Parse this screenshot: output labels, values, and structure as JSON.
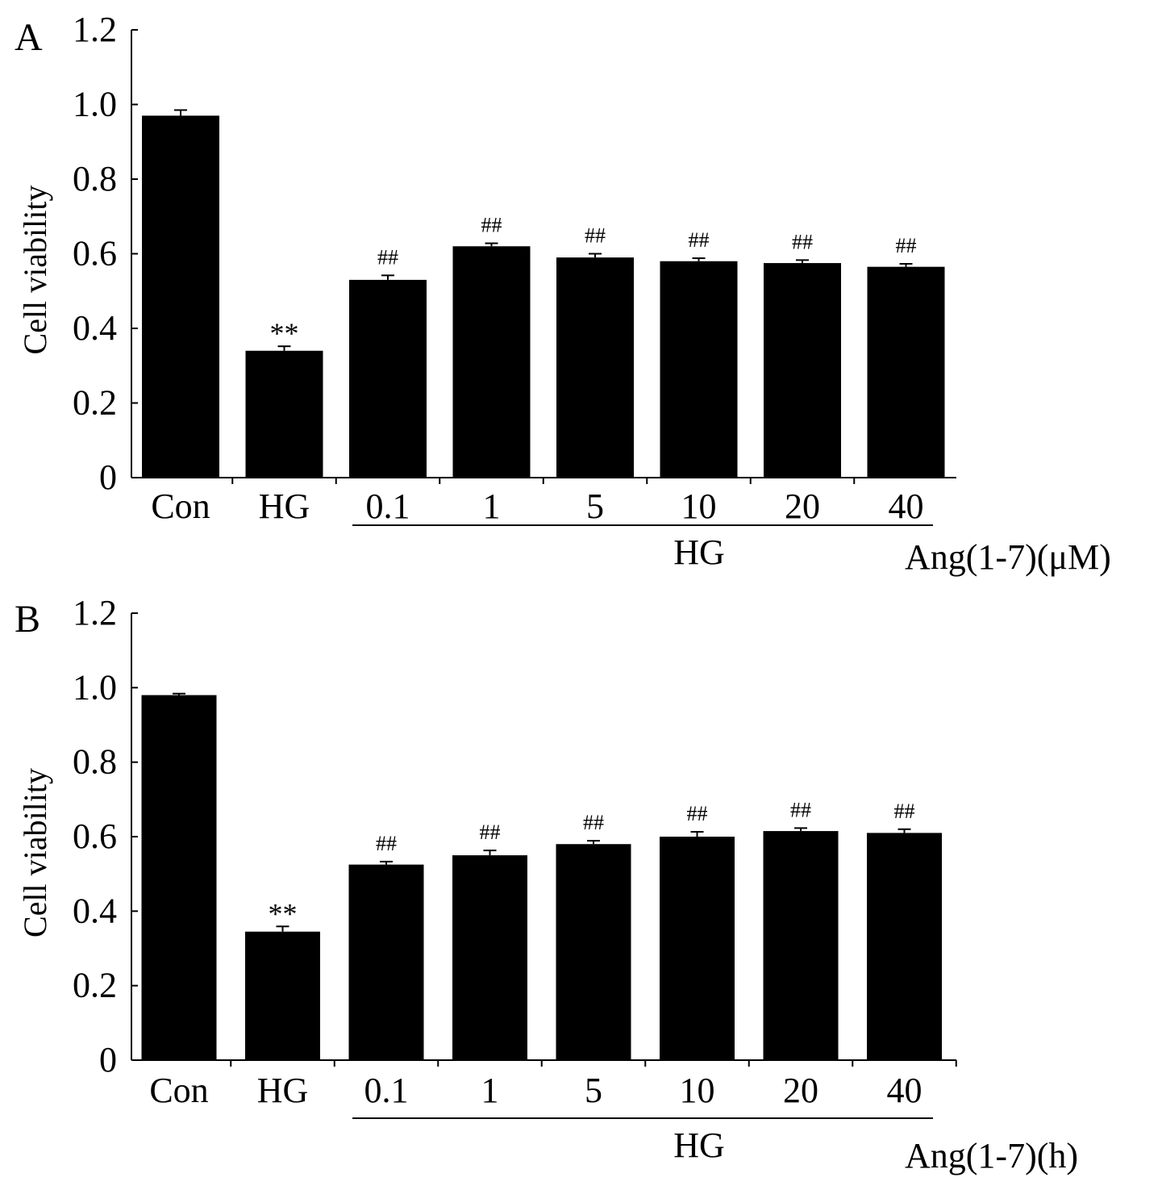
{
  "chart_data": [
    {
      "type": "bar",
      "panel_label": "A",
      "categories": [
        "Con",
        "HG",
        "0.1",
        "1",
        "5",
        "10",
        "20",
        "40"
      ],
      "values": [
        0.97,
        0.34,
        0.53,
        0.62,
        0.59,
        0.58,
        0.575,
        0.565
      ],
      "errors": [
        0.015,
        0.012,
        0.012,
        0.008,
        0.01,
        0.008,
        0.008,
        0.008
      ],
      "annotations": [
        "",
        "**",
        "##",
        "##",
        "##",
        "##",
        "##",
        "##"
      ],
      "ylabel": "Cell viability",
      "ylim": [
        0,
        1.2
      ],
      "yticks": [
        "0",
        "0.2",
        "0.4",
        "0.6",
        "0.8",
        "1.0",
        "1.2"
      ],
      "group_label": "HG",
      "treatment_label": "Ang(1-7)(μM)",
      "bar_color": "#000000"
    },
    {
      "type": "bar",
      "panel_label": "B",
      "categories": [
        "Con",
        "HG",
        "0.1",
        "1",
        "5",
        "10",
        "20",
        "40"
      ],
      "values": [
        0.98,
        0.345,
        0.525,
        0.55,
        0.58,
        0.6,
        0.615,
        0.61
      ],
      "errors": [
        0.004,
        0.014,
        0.008,
        0.013,
        0.009,
        0.013,
        0.008,
        0.01
      ],
      "annotations": [
        "",
        "**",
        "##",
        "##",
        "##",
        "##",
        "##",
        "##"
      ],
      "ylabel": "Cell viability",
      "ylim": [
        0,
        1.2
      ],
      "yticks": [
        "0",
        "0.2",
        "0.4",
        "0.6",
        "0.8",
        "1.0",
        "1.2"
      ],
      "group_label": "HG",
      "treatment_label": "Ang(1-7)(h)",
      "bar_color": "#000000"
    }
  ]
}
